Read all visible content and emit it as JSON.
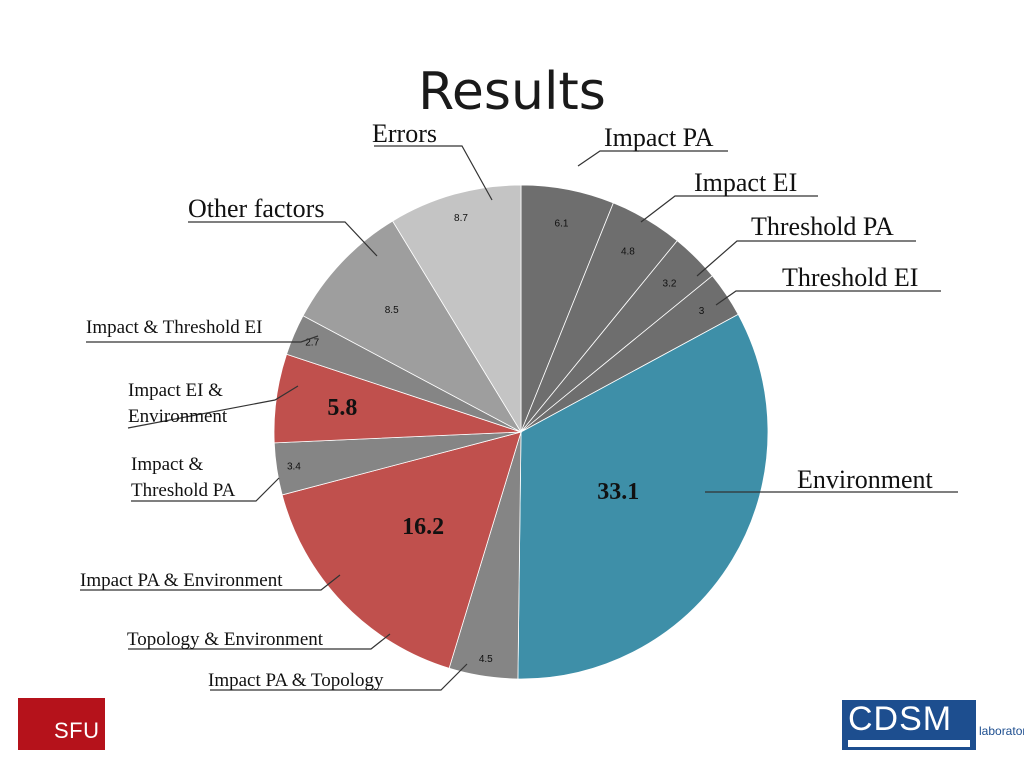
{
  "slide": {
    "title": "Results"
  },
  "logos": {
    "sfu": "SFU",
    "cdsm": "CDSM",
    "cdsm_sub": "laboratory"
  },
  "chart_data": {
    "type": "pie",
    "title": "",
    "start_angle_deg": 0,
    "direction": "clockwise",
    "slices": [
      {
        "label": "Impact PA",
        "value": 6.1,
        "value_text": "6.1",
        "color": "#6e6e6e",
        "emphasis": false
      },
      {
        "label": "Impact EI",
        "value": 4.8,
        "value_text": "4.8",
        "color": "#6e6e6e",
        "emphasis": false
      },
      {
        "label": "Threshold PA",
        "value": 3.2,
        "value_text": "3.2",
        "color": "#6e6e6e",
        "emphasis": false
      },
      {
        "label": "Threshold EI",
        "value": 3.0,
        "value_text": "3",
        "color": "#6e6e6e",
        "emphasis": false
      },
      {
        "label": "Environment",
        "value": 33.1,
        "value_text": "33.1",
        "color": "#3e8fa8",
        "emphasis": true
      },
      {
        "label": "Impact PA & Topology",
        "value": 4.5,
        "value_text": "4.5",
        "color": "#858585",
        "emphasis": false
      },
      {
        "label": "Topology & Environment",
        "value": 0.0,
        "value_text": "",
        "color": "#c0504d",
        "emphasis": false
      },
      {
        "label": "Impact PA & Environment",
        "value": 16.2,
        "value_text": "16.2",
        "color": "#c0504d",
        "emphasis": true
      },
      {
        "label": "Impact & Threshold PA",
        "value": 3.4,
        "value_text": "3.4",
        "color": "#858585",
        "emphasis": false
      },
      {
        "label": "Impact EI & Environment",
        "value": 5.8,
        "value_text": "5.8",
        "color": "#c0504d",
        "emphasis": true
      },
      {
        "label": "Impact & Threshold EI",
        "value": 2.7,
        "value_text": "2.7",
        "color": "#858585",
        "emphasis": false
      },
      {
        "label": "Other factors",
        "value": 8.5,
        "value_text": "8.5",
        "color": "#9e9e9e",
        "emphasis": false
      },
      {
        "label": "Errors",
        "value": 8.7,
        "value_text": "8.7",
        "color": "#c4c4c4",
        "emphasis": false
      }
    ]
  }
}
